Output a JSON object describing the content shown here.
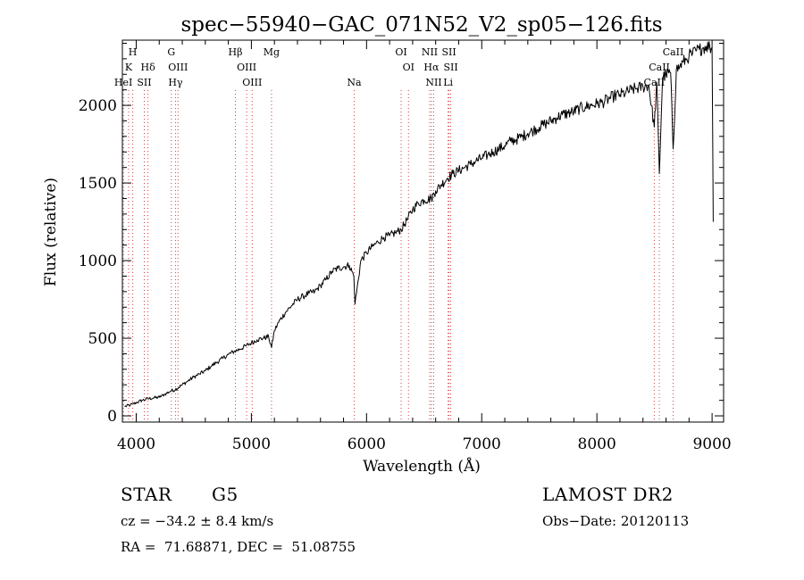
{
  "chart_data": {
    "type": "line",
    "title": "spec−55940−GAC_071N52_V2_sp05−126.fits",
    "xlabel": "Wavelength (Å)",
    "ylabel": "Flux (relative)",
    "xlim": [
      3880,
      9100
    ],
    "ylim": [
      -40,
      2420
    ],
    "x_ticks": [
      4000,
      5000,
      6000,
      7000,
      8000,
      9000
    ],
    "y_ticks": [
      0,
      500,
      1000,
      1500,
      2000
    ],
    "series": [
      {
        "name": "spectrum",
        "x": [
          3900,
          3950,
          4000,
          4050,
          4100,
          4150,
          4200,
          4250,
          4300,
          4340,
          4400,
          4450,
          4500,
          4550,
          4600,
          4650,
          4700,
          4750,
          4800,
          4850,
          4900,
          4950,
          5000,
          5050,
          5100,
          5150,
          5175,
          5200,
          5250,
          5300,
          5350,
          5400,
          5450,
          5500,
          5550,
          5600,
          5650,
          5700,
          5750,
          5800,
          5850,
          5890,
          5900,
          5950,
          6000,
          6050,
          6100,
          6150,
          6200,
          6250,
          6300,
          6350,
          6400,
          6450,
          6500,
          6563,
          6600,
          6650,
          6700,
          6750,
          6800,
          6850,
          6900,
          6950,
          7000,
          7050,
          7100,
          7150,
          7200,
          7250,
          7300,
          7350,
          7400,
          7450,
          7500,
          7550,
          7600,
          7650,
          7700,
          7750,
          7800,
          7850,
          7900,
          7950,
          8000,
          8050,
          8100,
          8150,
          8200,
          8250,
          8300,
          8350,
          8400,
          8450,
          8498,
          8520,
          8542,
          8570,
          8600,
          8640,
          8662,
          8690,
          8720,
          8750,
          8780,
          8800,
          8830,
          8860,
          8890,
          8920,
          8950,
          8980,
          9000,
          9010
        ],
        "y": [
          60,
          70,
          85,
          100,
          110,
          115,
          120,
          140,
          160,
          170,
          200,
          225,
          250,
          270,
          290,
          320,
          345,
          370,
          395,
          415,
          430,
          450,
          470,
          490,
          500,
          510,
          440,
          550,
          620,
          670,
          710,
          750,
          770,
          790,
          800,
          840,
          880,
          930,
          950,
          960,
          970,
          900,
          720,
          1000,
          1050,
          1090,
          1120,
          1150,
          1160,
          1180,
          1200,
          1260,
          1330,
          1370,
          1390,
          1400,
          1450,
          1490,
          1530,
          1560,
          1580,
          1600,
          1620,
          1640,
          1660,
          1680,
          1700,
          1720,
          1740,
          1770,
          1780,
          1800,
          1820,
          1840,
          1860,
          1880,
          1900,
          1920,
          1940,
          1950,
          1960,
          1980,
          1990,
          2000,
          2010,
          2020,
          2040,
          2060,
          2070,
          2080,
          2100,
          2110,
          2120,
          2130,
          1860,
          2150,
          1560,
          2180,
          2200,
          2210,
          1720,
          2230,
          2250,
          2280,
          2300,
          2320,
          2330,
          2350,
          2360,
          2370,
          2380,
          2380,
          2360,
          1250
        ]
      }
    ],
    "line_markers": [
      {
        "label": "H",
        "wavelength": 3970,
        "row": 1
      },
      {
        "label": "K",
        "wavelength": 3934,
        "row": 2
      },
      {
        "label": "HeI",
        "wavelength": 3889,
        "row": 3
      },
      {
        "label": "Hδ",
        "wavelength": 4102,
        "row": 2
      },
      {
        "label": "SII",
        "wavelength": 4070,
        "row": 3
      },
      {
        "label": "G",
        "wavelength": 4305,
        "row": 1
      },
      {
        "label": "OIII",
        "wavelength": 4363,
        "row": 2
      },
      {
        "label": "Hγ",
        "wavelength": 4341,
        "row": 3
      },
      {
        "label": "Hβ",
        "wavelength": 4861,
        "row": 1
      },
      {
        "label": "OIII",
        "wavelength": 4959,
        "row": 2
      },
      {
        "label": "OIII",
        "wavelength": 5007,
        "row": 3
      },
      {
        "label": "Mg",
        "wavelength": 5175,
        "row": 1
      },
      {
        "label": "Na",
        "wavelength": 5893,
        "row": 3
      },
      {
        "label": "OI",
        "wavelength": 6300,
        "row": 1
      },
      {
        "label": "OI",
        "wavelength": 6364,
        "row": 2
      },
      {
        "label": "NII",
        "wavelength": 6548,
        "row": 1
      },
      {
        "label": "SII",
        "wavelength": 6716,
        "row": 1
      },
      {
        "label": "Hα",
        "wavelength": 6563,
        "row": 2
      },
      {
        "label": "SII",
        "wavelength": 6731,
        "row": 2
      },
      {
        "label": "NII",
        "wavelength": 6583,
        "row": 3
      },
      {
        "label": "Li",
        "wavelength": 6708,
        "row": 3
      },
      {
        "label": "CaII",
        "wavelength": 8662,
        "row": 1
      },
      {
        "label": "CaII",
        "wavelength": 8542,
        "row": 2
      },
      {
        "label": "CaII",
        "wavelength": 8498,
        "row": 3
      }
    ]
  },
  "info": {
    "class_label": "STAR",
    "subclass": "G5",
    "cz_text": "cz = −34.2 ± 8.4 km/s",
    "radec_text": "RA =  71.68871, DEC =  51.08755",
    "survey": "LAMOST DR2",
    "obs_date": "Obs−Date: 20120113"
  }
}
